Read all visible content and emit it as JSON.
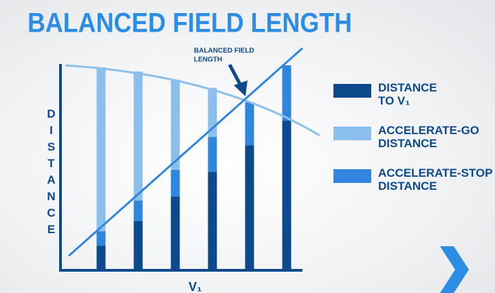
{
  "chart_data": {
    "type": "bar",
    "title": "BALANCED FIELD LENGTH",
    "annotation": [
      "BALANCED FIELD",
      "LENGTH"
    ],
    "y_label": "DISTANCE",
    "x_label": "V₁",
    "categories": [
      null,
      null,
      null,
      null,
      null,
      null
    ],
    "ylim": [
      0,
      100
    ],
    "series": [
      {
        "name": "DISTANCE TO V₁",
        "color": "#0d4a8c",
        "values": [
          12,
          24,
          36,
          48,
          61,
          73
        ]
      },
      {
        "name": "ACCELERATE-GO DISTANCE",
        "color": "#8cc0ec",
        "values": [
          99,
          97,
          93,
          89,
          82,
          76
        ]
      },
      {
        "name": "ACCELERATE-STOP DISTANCE",
        "color": "#2f86dc",
        "values": [
          7,
          10,
          13,
          17,
          21,
          27
        ]
      }
    ]
  }
}
